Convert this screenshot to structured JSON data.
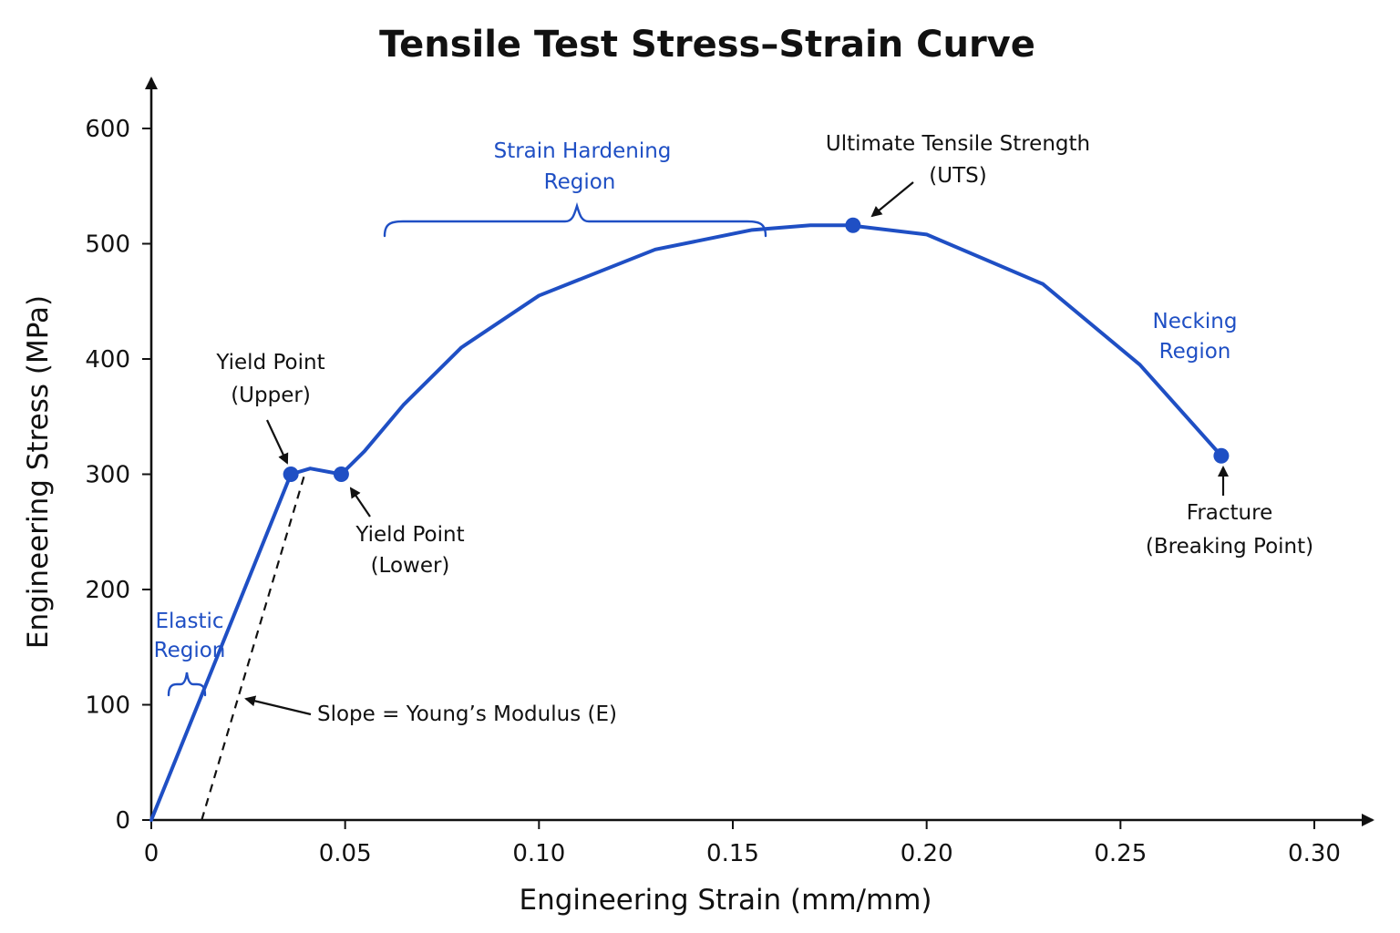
{
  "chart_data": {
    "type": "line",
    "title": "Tensile Test Stress–Strain Curve",
    "xlabel": "Engineering Strain (mm/mm)",
    "ylabel": "Engineering Stress (MPa)",
    "xlim": [
      0,
      0.31
    ],
    "ylim": [
      0,
      640
    ],
    "x_ticks": [
      0,
      0.05,
      0.1,
      0.15,
      0.2,
      0.25,
      0.3
    ],
    "x_tick_labels": [
      "0",
      "0.05",
      "0.10",
      "0.15",
      "0.20",
      "0.25",
      "0.30"
    ],
    "y_ticks": [
      0,
      100,
      200,
      300,
      400,
      500,
      600
    ],
    "y_tick_labels": [
      "0",
      "100",
      "200",
      "300",
      "400",
      "500",
      "600"
    ],
    "grid": false,
    "colors": {
      "curve": "#1f4fc4",
      "marker": "#1f4fc4",
      "axis": "#111111",
      "text": "#111111",
      "annotation_blue": "#1f4fc4"
    },
    "series": [
      {
        "x": [
          0,
          0.036,
          0.041,
          0.049,
          0.055,
          0.065,
          0.08,
          0.1,
          0.13,
          0.155,
          0.17,
          0.18,
          0.2,
          0.23,
          0.255,
          0.276
        ],
        "values": [
          0,
          300,
          305,
          300,
          320,
          360,
          410,
          455,
          495,
          512,
          516,
          516,
          508,
          465,
          395,
          316
        ]
      }
    ],
    "points": [
      {
        "id": "yield-upper",
        "x": 0.036,
        "y": 300
      },
      {
        "id": "yield-lower",
        "x": 0.049,
        "y": 300
      },
      {
        "id": "uts",
        "x": 0.181,
        "y": 516
      },
      {
        "id": "fracture",
        "x": 0.276,
        "y": 316
      }
    ],
    "modulus_line": {
      "x": [
        0.013,
        0.04
      ],
      "y": [
        0,
        305
      ]
    },
    "annotations": {
      "yield_upper": [
        "Yield Point",
        "(Upper)"
      ],
      "yield_lower": [
        "Yield Point",
        "(Lower)"
      ],
      "uts": [
        "Ultimate Tensile Strength",
        "(UTS)"
      ],
      "fracture": [
        "Fracture",
        "(Breaking Point)"
      ],
      "strain_hardening": [
        "Strain Hardening",
        "Region"
      ],
      "necking": [
        "Necking",
        "Region"
      ],
      "elastic": [
        "Elastic",
        "Region"
      ],
      "modulus": "Slope = Young’s Modulus (E)"
    }
  }
}
